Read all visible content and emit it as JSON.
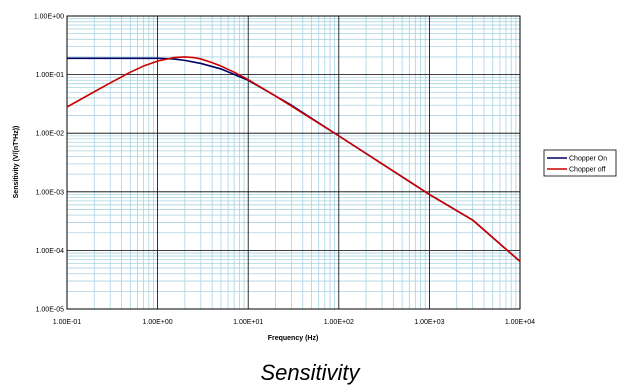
{
  "caption": "Sensitivity",
  "chart_data": {
    "type": "line",
    "title": "",
    "xlabel": "Frequency (Hz)",
    "ylabel": "Sensitivity (V/(nT*Hz))",
    "xscale": "log",
    "yscale": "log",
    "xlim": [
      0.1,
      10000
    ],
    "ylim": [
      1e-05,
      1
    ],
    "x_ticks": [
      "1.00E-01",
      "1.00E+00",
      "1.00E+01",
      "1.00E+02",
      "1.00E+03",
      "1.00E+04"
    ],
    "y_ticks": [
      "1.00E+00",
      "1.00E-01",
      "1.00E-02",
      "1.00E-03",
      "1.00E-04",
      "1.00E-05"
    ],
    "grid": true,
    "legend_position": "right",
    "series": [
      {
        "name": "Chopper On",
        "color": "#000066",
        "x": [
          0.1,
          0.3,
          0.6,
          1,
          1.5,
          2,
          3,
          5,
          10,
          30,
          100,
          1000,
          3000,
          10000
        ],
        "y": [
          0.19,
          0.19,
          0.19,
          0.19,
          0.185,
          0.175,
          0.155,
          0.125,
          0.08,
          0.03,
          0.009,
          0.0009,
          0.00033,
          6.5e-05
        ]
      },
      {
        "name": "Chopper off",
        "color": "#cc0000",
        "x": [
          0.1,
          0.2,
          0.3,
          0.5,
          0.7,
          1,
          1.5,
          2,
          2.5,
          3,
          4,
          5,
          7,
          10,
          20,
          30,
          100,
          300,
          1000,
          3000,
          10000
        ],
        "y": [
          0.028,
          0.051,
          0.072,
          0.11,
          0.14,
          0.17,
          0.195,
          0.2,
          0.195,
          0.185,
          0.16,
          0.14,
          0.11,
          0.082,
          0.043,
          0.029,
          0.009,
          0.003,
          0.0009,
          0.00033,
          6.5e-05
        ]
      }
    ]
  }
}
